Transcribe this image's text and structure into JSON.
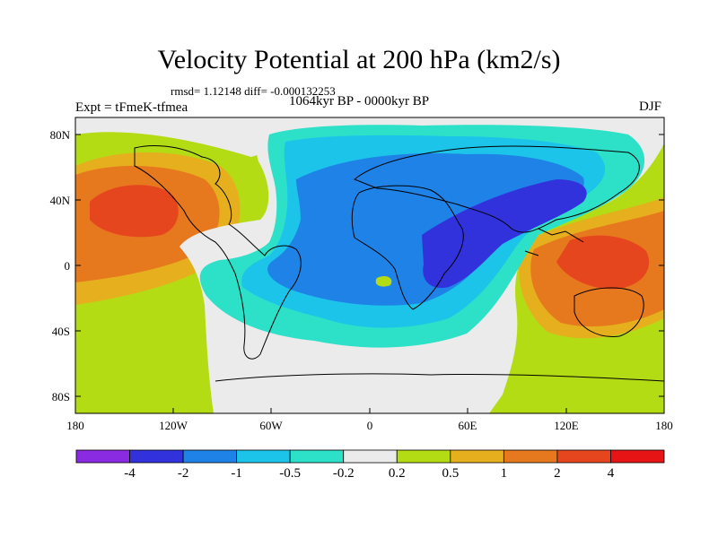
{
  "figure": {
    "title": "Velocity Potential at 200 hPa (km2/s)",
    "rmsd_line": "rmsd= 1.12148 diff= -0.000132253",
    "period": "1064kyr BP - 0000kyr BP",
    "experiment": "Expt = tFmeK-tfmea",
    "season": "DJF"
  },
  "axes": {
    "lat_ticks": [
      "80N",
      "40N",
      "0",
      "40S",
      "80S"
    ],
    "lon_ticks": [
      "180",
      "120W",
      "60W",
      "0",
      "60E",
      "120E",
      "180"
    ]
  },
  "colorbar": {
    "labels": [
      "-4",
      "-2",
      "-1",
      "-0.5",
      "-0.2",
      "0.2",
      "0.5",
      "1",
      "2",
      "4"
    ],
    "colors": [
      "#8a2be2",
      "#3232dc",
      "#1e82e6",
      "#1cc4ea",
      "#2de0c8",
      "#ebebeb",
      "#b4dc14",
      "#e6af1e",
      "#e6781e",
      "#e6461e",
      "#e61414"
    ]
  },
  "chart_data": {
    "type": "heatmap",
    "variable": "Velocity Potential at 200 hPa",
    "units": "km2/s",
    "contour_levels": [
      -4,
      -2,
      -1,
      -0.5,
      -0.2,
      0.2,
      0.5,
      1,
      2,
      4
    ],
    "lon_range": [
      -180,
      180
    ],
    "lat_range": [
      -90,
      90
    ]
  }
}
